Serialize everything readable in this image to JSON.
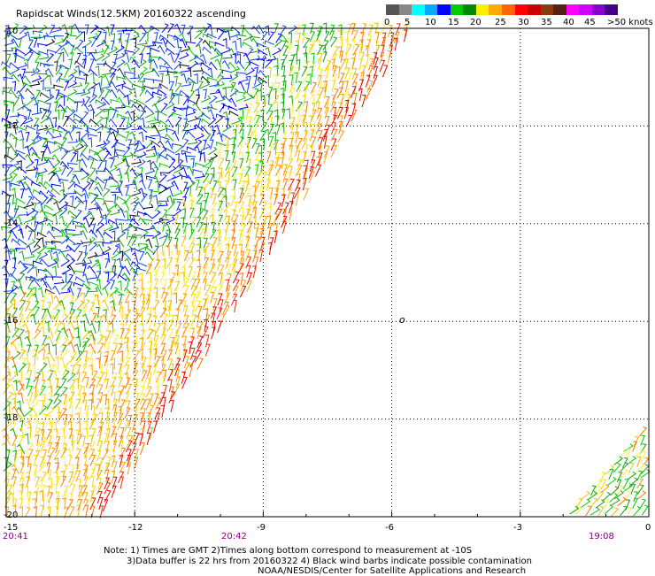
{
  "title": "Rapidscat Winds(12.5KM) 20160322 ascending",
  "legend": {
    "colors": [
      "#555555",
      "#888888",
      "#00ffff",
      "#00aaff",
      "#0000ff",
      "#00cc00",
      "#008800",
      "#ffee00",
      "#ffaa00",
      "#ff6600",
      "#ff0000",
      "#cc0000",
      "#8b3a0f",
      "#552211",
      "#ff00ff",
      "#cc00ff",
      "#8800cc",
      "#440088"
    ],
    "labels": [
      "0",
      "5",
      "10",
      "15",
      "20",
      "25",
      "30",
      "35",
      "40",
      "45",
      ">50 knots"
    ]
  },
  "axes": {
    "x_ticks": [
      "-12",
      "-9",
      "-6",
      "-3",
      "0"
    ],
    "x_corner_left": "-15",
    "y_ticks": [
      "-10",
      "-12",
      "-14",
      "-16",
      "-18",
      "-20"
    ]
  },
  "times": {
    "left": "20:41",
    "center": "20:42",
    "right": "19:08"
  },
  "marker": "o",
  "notes": {
    "line1": "Note: 1) Times are GMT 2)Times along bottom correspond to measurement at -10S",
    "line2": "3)Data buffer is 22 hrs from 20160322 4) Black wind barbs indicate possible contamination",
    "line3": "NOAA/NESDIS/Center for Satellite Applications and Research"
  },
  "map_data": {
    "lon_range": [
      -15,
      0
    ],
    "lat_range": [
      -20,
      -10
    ],
    "swaths": [
      {
        "name": "main",
        "edge_top_lon": -5.5,
        "edge_bottom_lon": -12.5
      },
      {
        "name": "corner",
        "edge_bottom_lon": -2
      }
    ]
  }
}
